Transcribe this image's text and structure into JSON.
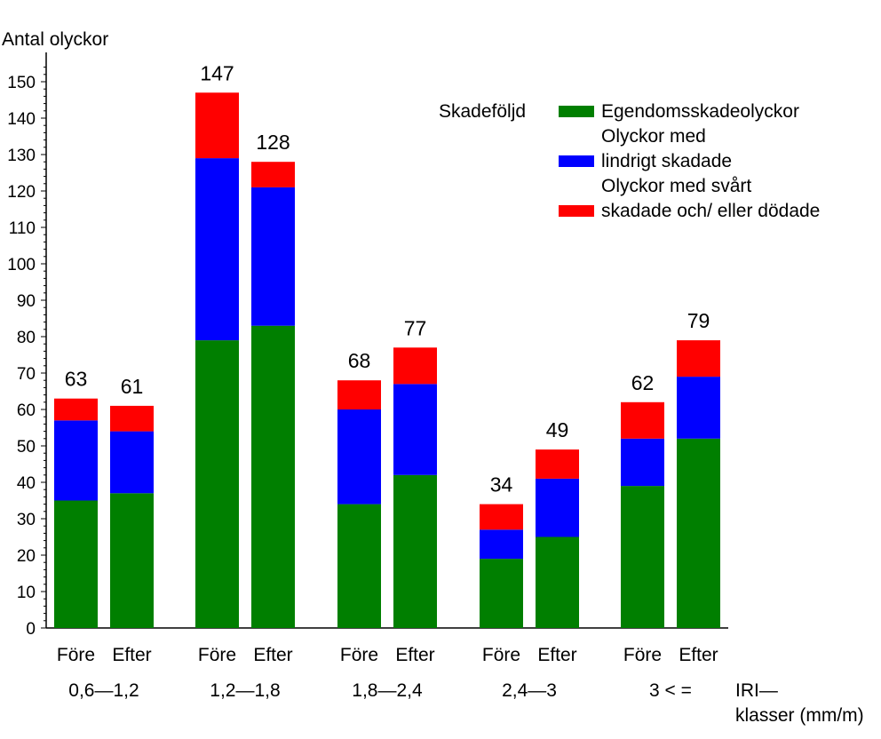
{
  "chart_data": {
    "type": "bar",
    "stacked": true,
    "ylabel": "Antal olyckor",
    "xlabel": "IRI– klasser (mm/m)",
    "xlabel_lines": [
      "IRI—",
      "klasser  (mm/m)"
    ],
    "ylim": [
      0,
      155
    ],
    "yticks": [
      0,
      10,
      20,
      30,
      40,
      50,
      60,
      70,
      80,
      90,
      100,
      110,
      120,
      130,
      140,
      150
    ],
    "groups": [
      {
        "label": "0,6—1,2",
        "bars": [
          {
            "label": "Före",
            "total": 63,
            "values": [
              35,
              22,
              6
            ]
          },
          {
            "label": "Efter",
            "total": 61,
            "values": [
              37,
              17,
              7
            ]
          }
        ]
      },
      {
        "label": "1,2—1,8",
        "bars": [
          {
            "label": "Före",
            "total": 147,
            "values": [
              79,
              50,
              18
            ]
          },
          {
            "label": "Efter",
            "total": 128,
            "values": [
              83,
              38,
              7
            ]
          }
        ]
      },
      {
        "label": "1,8—2,4",
        "bars": [
          {
            "label": "Före",
            "total": 68,
            "values": [
              34,
              26,
              8
            ]
          },
          {
            "label": "Efter",
            "total": 77,
            "values": [
              42,
              25,
              10
            ]
          }
        ]
      },
      {
        "label": "2,4—3",
        "bars": [
          {
            "label": "Före",
            "total": 34,
            "values": [
              19,
              8,
              7
            ]
          },
          {
            "label": "Efter",
            "total": 49,
            "values": [
              25,
              16,
              8
            ]
          }
        ]
      },
      {
        "label": "3  < =",
        "bars": [
          {
            "label": "Före",
            "total": 62,
            "values": [
              39,
              13,
              10
            ]
          },
          {
            "label": "Efter",
            "total": 79,
            "values": [
              52,
              17,
              10
            ]
          }
        ]
      }
    ],
    "series": [
      {
        "name": "Egendomsskadeolyckor",
        "name_lines": [
          "Egendomsskadeolyckor"
        ],
        "color": "#007f00"
      },
      {
        "name": "Olyckor med lindrigt skadade",
        "name_lines": [
          "Olyckor  med",
          "lindrigt  skadade"
        ],
        "color": "#0000ff"
      },
      {
        "name": "Olyckor med svårt skadade och/ eller dödade",
        "name_lines": [
          "Olyckor  med  svårt",
          "skadade  och/  eller  dödade"
        ],
        "color": "#ff0000"
      }
    ],
    "legend": {
      "title": "Skadeföljd",
      "placement": "top-right"
    },
    "grid": false
  }
}
